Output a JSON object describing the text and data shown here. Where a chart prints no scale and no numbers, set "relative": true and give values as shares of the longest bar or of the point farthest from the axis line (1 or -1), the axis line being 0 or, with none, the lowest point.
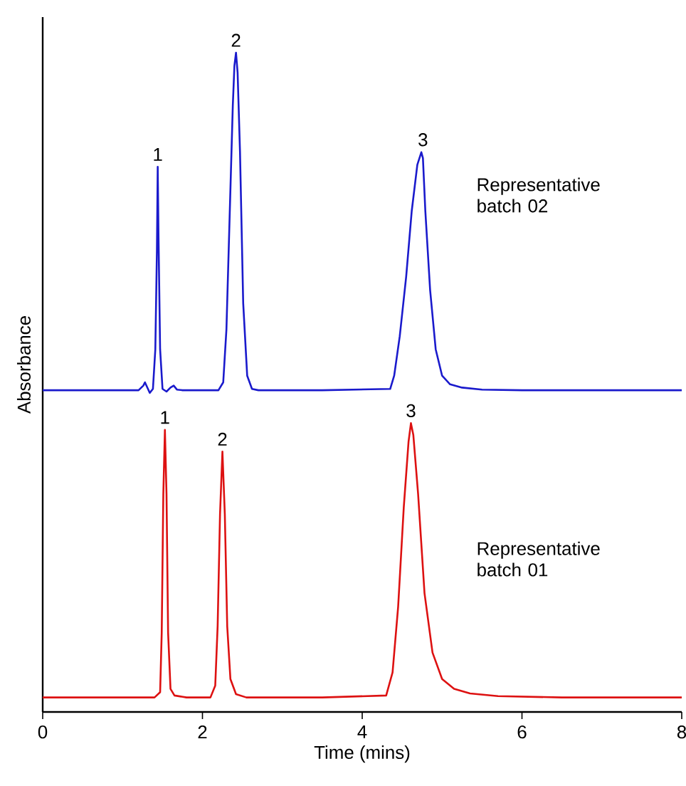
{
  "chart_data": {
    "type": "line",
    "xlabel": "Time  (mins)",
    "ylabel": "Absorbance",
    "relative": true,
    "xlim": [
      0,
      8
    ],
    "xticks": [
      0,
      2,
      4,
      6,
      8
    ],
    "grid": false,
    "legend": false,
    "marker": "none",
    "line_style": "solid",
    "series": [
      {
        "name": "Representative batch 02",
        "color": "#1a1acc",
        "x": [
          0,
          1.2,
          1.26,
          1.28,
          1.31,
          1.34,
          1.38,
          1.41,
          1.43,
          1.44,
          1.45,
          1.47,
          1.5,
          1.55,
          1.6,
          1.64,
          1.68,
          1.75,
          2.2,
          2.26,
          2.3,
          2.34,
          2.38,
          2.4,
          2.42,
          2.44,
          2.47,
          2.51,
          2.56,
          2.62,
          2.7,
          3.5,
          4.35,
          4.4,
          4.47,
          4.55,
          4.62,
          4.69,
          4.74,
          4.76,
          4.79,
          4.85,
          4.92,
          5.0,
          5.1,
          5.25,
          5.5,
          6,
          7,
          8
        ],
        "values": [
          0.488,
          0.488,
          0.495,
          0.5,
          0.492,
          0.484,
          0.49,
          0.55,
          0.7,
          0.827,
          0.72,
          0.55,
          0.49,
          0.486,
          0.492,
          0.495,
          0.489,
          0.488,
          0.488,
          0.5,
          0.58,
          0.75,
          0.92,
          0.98,
          1.0,
          0.97,
          0.85,
          0.62,
          0.51,
          0.49,
          0.488,
          0.488,
          0.49,
          0.51,
          0.57,
          0.66,
          0.76,
          0.83,
          0.849,
          0.84,
          0.76,
          0.64,
          0.55,
          0.51,
          0.497,
          0.492,
          0.489,
          0.488,
          0.488,
          0.488
        ]
      },
      {
        "name": "Representative batch 01",
        "color": "#dd1111",
        "x": [
          0,
          1.4,
          1.47,
          1.49,
          1.51,
          1.53,
          1.55,
          1.57,
          1.6,
          1.65,
          1.8,
          2.1,
          2.16,
          2.19,
          2.22,
          2.25,
          2.28,
          2.31,
          2.35,
          2.42,
          2.55,
          3.5,
          4.3,
          4.38,
          4.45,
          4.52,
          4.58,
          4.61,
          4.64,
          4.7,
          4.78,
          4.88,
          5.0,
          5.15,
          5.35,
          5.7,
          6.5,
          8
        ],
        "values": [
          0.022,
          0.022,
          0.03,
          0.12,
          0.33,
          0.428,
          0.33,
          0.12,
          0.035,
          0.025,
          0.022,
          0.022,
          0.04,
          0.13,
          0.3,
          0.395,
          0.3,
          0.13,
          0.05,
          0.027,
          0.022,
          0.022,
          0.025,
          0.06,
          0.16,
          0.31,
          0.41,
          0.438,
          0.42,
          0.33,
          0.18,
          0.09,
          0.05,
          0.035,
          0.028,
          0.024,
          0.022,
          0.022
        ]
      }
    ],
    "annotations": [
      {
        "text": "1",
        "x": 1.44,
        "y": 0.827
      },
      {
        "text": "2",
        "x": 2.42,
        "y": 1.0
      },
      {
        "text": "3",
        "x": 4.76,
        "y": 0.849
      },
      {
        "text": "1",
        "x": 1.53,
        "y": 0.428
      },
      {
        "text": "2",
        "x": 2.25,
        "y": 0.395
      },
      {
        "text": "3",
        "x": 4.61,
        "y": 0.438
      }
    ]
  }
}
